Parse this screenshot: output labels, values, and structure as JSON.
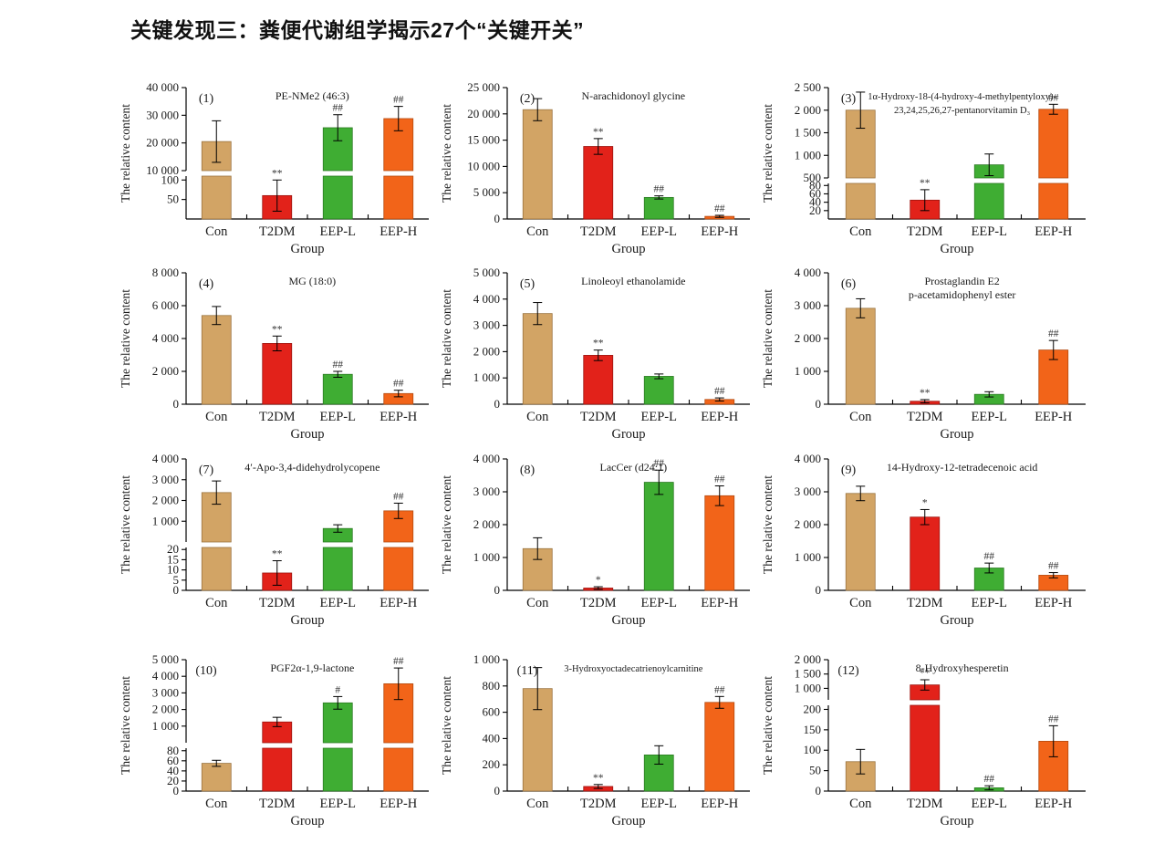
{
  "header": {
    "title": "关键发现三：粪便代谢组学揭示27个“关键开关”"
  },
  "shared": {
    "ylabel": "The relative content",
    "xlabel": "Group",
    "categories": [
      "Con",
      "T2DM",
      "EEP-L",
      "EEP-H"
    ],
    "bar_colors": [
      "#D2A465",
      "#E2221A",
      "#3FAD33",
      "#F26419"
    ],
    "bar_stroke_colors": [
      "#9a7440",
      "#9c130e",
      "#2b7a22",
      "#b34a10"
    ],
    "axis_color": "#000000",
    "text_color": "#1a1a1a",
    "sig_color": "#333333"
  },
  "chart_data": [
    {
      "type": "bar",
      "num": "(1)",
      "title_lines": [
        "PE-NMe2 (46:3)"
      ],
      "broken": true,
      "top_frac": 0.66,
      "bottom_max": 110,
      "bottom_ticks": [
        [
          50,
          "50"
        ],
        [
          100,
          "100"
        ]
      ],
      "top_min": 10000,
      "top_max": 40000,
      "top_ticks": [
        [
          10000,
          "10 000"
        ],
        [
          20000,
          "20 000"
        ],
        [
          30000,
          "30 000"
        ],
        [
          40000,
          "40 000"
        ]
      ],
      "values": [
        20500,
        60,
        25500,
        28800
      ],
      "errors": [
        7500,
        40,
        4700,
        4400
      ],
      "sig": [
        "",
        "**",
        "##",
        "##"
      ]
    },
    {
      "type": "bar",
      "num": "(2)",
      "title_lines": [
        "N-arachidonoyl glycine"
      ],
      "broken": false,
      "ymax": 25000,
      "ticks": [
        [
          0,
          "0"
        ],
        [
          5000,
          "5 000"
        ],
        [
          10000,
          "10 000"
        ],
        [
          15000,
          "15 000"
        ],
        [
          20000,
          "20 000"
        ],
        [
          25000,
          "25 000"
        ]
      ],
      "values": [
        20800,
        13800,
        4100,
        500
      ],
      "errors": [
        2100,
        1500,
        300,
        200
      ],
      "sig": [
        "",
        "**",
        "##",
        "##"
      ]
    },
    {
      "type": "bar",
      "num": "(3)",
      "title_lines": [
        "1α-Hydroxy-18-(4-hydroxy-4-methylpentyloxy)-",
        "23,24,25,26,27-pentanorvitamin D₃"
      ],
      "broken": true,
      "top_frac": 0.72,
      "bottom_max": 85,
      "bottom_ticks": [
        [
          20,
          "20"
        ],
        [
          40,
          "40"
        ],
        [
          60,
          "60"
        ],
        [
          80,
          "80"
        ]
      ],
      "top_min": 500,
      "top_max": 2500,
      "top_ticks": [
        [
          500,
          "500"
        ],
        [
          1000,
          "1 000"
        ],
        [
          1500,
          "1 500"
        ],
        [
          2000,
          "2 000"
        ],
        [
          2500,
          "2 500"
        ]
      ],
      "values": [
        2000,
        45,
        790,
        2020
      ],
      "errors": [
        400,
        25,
        240,
        110
      ],
      "sig": [
        "",
        "**",
        "",
        "##"
      ]
    },
    {
      "type": "bar",
      "num": "(4)",
      "title_lines": [
        "MG (18:0)"
      ],
      "broken": false,
      "ymax": 8000,
      "ticks": [
        [
          0,
          "0"
        ],
        [
          2000,
          "2 000"
        ],
        [
          4000,
          "4 000"
        ],
        [
          6000,
          "6 000"
        ],
        [
          8000,
          "8 000"
        ]
      ],
      "values": [
        5400,
        3700,
        1820,
        650
      ],
      "errors": [
        550,
        450,
        180,
        200
      ],
      "sig": [
        "",
        "**",
        "##",
        "##"
      ]
    },
    {
      "type": "bar",
      "num": "(5)",
      "title_lines": [
        "Linoleoyl ethanolamide"
      ],
      "broken": false,
      "ymax": 5000,
      "ticks": [
        [
          0,
          "0"
        ],
        [
          1000,
          "1 000"
        ],
        [
          2000,
          "2 000"
        ],
        [
          3000,
          "3 000"
        ],
        [
          4000,
          "4 000"
        ],
        [
          5000,
          "5 000"
        ]
      ],
      "values": [
        3450,
        1860,
        1060,
        180
      ],
      "errors": [
        420,
        200,
        90,
        60
      ],
      "sig": [
        "",
        "**",
        "",
        "##"
      ]
    },
    {
      "type": "bar",
      "num": "(6)",
      "title_lines": [
        "Prostaglandin E2",
        "p-acetamidophenyl ester"
      ],
      "broken": false,
      "ymax": 4000,
      "ticks": [
        [
          0,
          "0"
        ],
        [
          1000,
          "1 000"
        ],
        [
          2000,
          "2 000"
        ],
        [
          3000,
          "3 000"
        ],
        [
          4000,
          "4 000"
        ]
      ],
      "values": [
        2920,
        90,
        300,
        1650
      ],
      "errors": [
        290,
        50,
        80,
        290
      ],
      "sig": [
        "",
        "**",
        "",
        "##"
      ]
    },
    {
      "type": "bar",
      "num": "(7)",
      "title_lines": [
        "4′-Apo-3,4-didehydrolycopene"
      ],
      "broken": true,
      "top_frac": 0.66,
      "bottom_max": 21,
      "bottom_ticks": [
        [
          0,
          "0"
        ],
        [
          5,
          "5"
        ],
        [
          10,
          "10"
        ],
        [
          15,
          "15"
        ],
        [
          20,
          "20"
        ]
      ],
      "top_min": 0,
      "top_max": 4000,
      "top_ticks": [
        [
          1000,
          "1 000"
        ],
        [
          2000,
          "2 000"
        ],
        [
          3000,
          "3 000"
        ],
        [
          4000,
          "4 000"
        ]
      ],
      "values": [
        2380,
        8.5,
        650,
        1500
      ],
      "errors": [
        560,
        6,
        180,
        370
      ],
      "sig": [
        "",
        "**",
        "",
        "##"
      ]
    },
    {
      "type": "bar",
      "num": "(8)",
      "title_lines": [
        "LacCer (d24:1)"
      ],
      "broken": false,
      "ymax": 4000,
      "ticks": [
        [
          0,
          "0"
        ],
        [
          1000,
          "1 000"
        ],
        [
          2000,
          "2 000"
        ],
        [
          3000,
          "3 000"
        ],
        [
          4000,
          "4 000"
        ]
      ],
      "values": [
        1270,
        70,
        3290,
        2880
      ],
      "errors": [
        330,
        40,
        370,
        300
      ],
      "sig": [
        "",
        "*",
        "##",
        "##"
      ]
    },
    {
      "type": "bar",
      "num": "(9)",
      "title_lines": [
        "14-Hydroxy-12-tetradecenoic acid"
      ],
      "broken": false,
      "ymax": 4000,
      "ticks": [
        [
          0,
          "0"
        ],
        [
          1000,
          "1 000"
        ],
        [
          2000,
          "2 000"
        ],
        [
          3000,
          "3 000"
        ],
        [
          4000,
          "4 000"
        ]
      ],
      "values": [
        2950,
        2230,
        680,
        460
      ],
      "errors": [
        220,
        230,
        150,
        80
      ],
      "sig": [
        "",
        "*",
        "##",
        "##"
      ]
    },
    {
      "type": "bar",
      "num": "(10)",
      "title_lines": [
        "PGF2α-1,9-lactone"
      ],
      "broken": true,
      "top_frac": 0.66,
      "bottom_max": 85,
      "bottom_ticks": [
        [
          0,
          "0"
        ],
        [
          20,
          "20"
        ],
        [
          40,
          "40"
        ],
        [
          60,
          "60"
        ],
        [
          80,
          "80"
        ]
      ],
      "top_min": 0,
      "top_max": 5000,
      "top_ticks": [
        [
          1000,
          "1 000"
        ],
        [
          2000,
          "2 000"
        ],
        [
          3000,
          "3 000"
        ],
        [
          4000,
          "4 000"
        ],
        [
          5000,
          "5 000"
        ]
      ],
      "values": [
        55,
        1250,
        2400,
        3550
      ],
      "errors": [
        6,
        280,
        380,
        950
      ],
      "sig": [
        "",
        "",
        "#",
        "##"
      ]
    },
    {
      "type": "bar",
      "num": "(11)",
      "title_lines": [
        "3-Hydroxyoctadecatrienoylcarnitine"
      ],
      "broken": false,
      "ymax": 1000,
      "ticks": [
        [
          0,
          "0"
        ],
        [
          200,
          "200"
        ],
        [
          400,
          "400"
        ],
        [
          600,
          "600"
        ],
        [
          800,
          "800"
        ],
        [
          1000,
          "1 000"
        ]
      ],
      "values": [
        780,
        35,
        275,
        675
      ],
      "errors": [
        160,
        15,
        70,
        45
      ],
      "sig": [
        "",
        "**",
        "",
        "##"
      ]
    },
    {
      "type": "bar",
      "num": "(12)",
      "title_lines": [
        "8-Hydroxyhesperetin"
      ],
      "broken": true,
      "top_frac": 0.32,
      "bottom_max": 210,
      "bottom_ticks": [
        [
          0,
          "0"
        ],
        [
          50,
          "50"
        ],
        [
          100,
          "100"
        ],
        [
          150,
          "150"
        ],
        [
          200,
          "200"
        ]
      ],
      "top_min": 600,
      "top_max": 2000,
      "top_ticks": [
        [
          1000,
          "1 000"
        ],
        [
          1500,
          "1 500"
        ],
        [
          2000,
          "2 000"
        ]
      ],
      "values": [
        72,
        1120,
        8,
        122
      ],
      "errors": [
        30,
        180,
        5,
        38
      ],
      "sig": [
        "",
        "**",
        "##",
        "##"
      ]
    }
  ]
}
